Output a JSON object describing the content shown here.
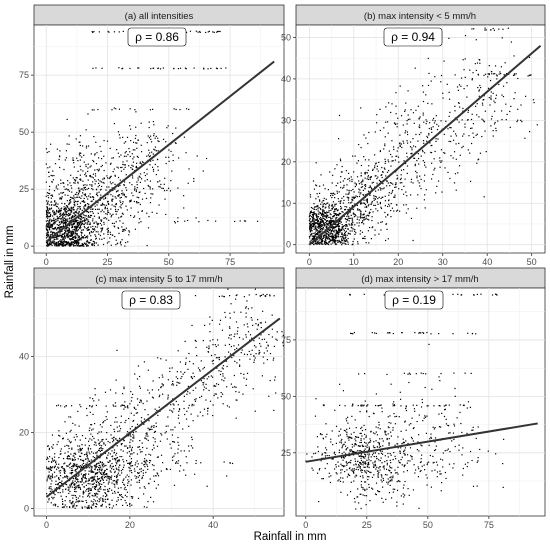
{
  "figure": {
    "xlabel": "Rainfall in mm",
    "ylabel": "Rainfall in mm"
  },
  "chart_data": [
    {
      "type": "scatter",
      "title": "(a) all intensities",
      "annotation": "ρ = 0.86",
      "xlim": [
        -5,
        97
      ],
      "ylim": [
        -3,
        97
      ],
      "xticks": [
        0,
        25,
        50,
        75
      ],
      "yticks": [
        0,
        25,
        50,
        75
      ],
      "grid": true,
      "fit_line": {
        "x": [
          0,
          93
        ],
        "y": [
          2,
          81
        ]
      },
      "clusters": [
        {
          "cx": 8,
          "cy": 8,
          "sx": 6,
          "sy": 7,
          "n": 900
        },
        {
          "cx": 20,
          "cy": 18,
          "sx": 9,
          "sy": 10,
          "n": 450
        },
        {
          "cx": 38,
          "cy": 35,
          "sx": 10,
          "sy": 10,
          "n": 250
        },
        {
          "cx": 10,
          "cy": 35,
          "sx": 6,
          "sy": 8,
          "n": 80
        }
      ],
      "bands": [
        {
          "y": 94,
          "x0": 18,
          "x1": 72,
          "n": 35
        },
        {
          "y": 78,
          "x0": 18,
          "x1": 75,
          "n": 30
        },
        {
          "y": 60,
          "x0": 15,
          "x1": 60,
          "n": 15
        },
        {
          "y": 11,
          "x0": 50,
          "x1": 94,
          "n": 12
        }
      ]
    },
    {
      "type": "scatter",
      "title": "(b) max intensity < 5 mm/h",
      "annotation": "ρ = 0.94",
      "xlim": [
        -3,
        53
      ],
      "ylim": [
        -2,
        53
      ],
      "xticks": [
        0,
        10,
        20,
        30,
        40,
        50
      ],
      "yticks": [
        0,
        10,
        20,
        30,
        40,
        50
      ],
      "grid": true,
      "fit_line": {
        "x": [
          0,
          52
        ],
        "y": [
          0,
          48
        ]
      },
      "clusters": [
        {
          "cx": 4,
          "cy": 4,
          "sx": 3,
          "sy": 3,
          "n": 800
        },
        {
          "cx": 12,
          "cy": 11,
          "sx": 5,
          "sy": 5,
          "n": 450
        },
        {
          "cx": 25,
          "cy": 24,
          "sx": 6,
          "sy": 6,
          "n": 260
        },
        {
          "cx": 38,
          "cy": 35,
          "sx": 6,
          "sy": 6,
          "n": 150
        }
      ],
      "bands": [
        {
          "y": 52,
          "x0": 34,
          "x1": 45,
          "n": 12
        },
        {
          "y": 41,
          "x0": 38,
          "x1": 50,
          "n": 25
        },
        {
          "y": 30,
          "x0": 25,
          "x1": 52,
          "n": 20
        }
      ]
    },
    {
      "type": "scatter",
      "title": "(c) max intensity 5 to 17 mm/h",
      "annotation": "ρ = 0.83",
      "xlim": [
        -3,
        57
      ],
      "ylim": [
        -2,
        58
      ],
      "xticks": [
        0,
        20,
        40
      ],
      "yticks": [
        0,
        20,
        40
      ],
      "grid": true,
      "fit_line": {
        "x": [
          0,
          56
        ],
        "y": [
          3,
          50
        ]
      },
      "clusters": [
        {
          "cx": 10,
          "cy": 9,
          "sx": 6,
          "sy": 5,
          "n": 900
        },
        {
          "cx": 22,
          "cy": 18,
          "sx": 7,
          "sy": 7,
          "n": 350
        },
        {
          "cx": 35,
          "cy": 32,
          "sx": 7,
          "sy": 6,
          "n": 200
        },
        {
          "cx": 48,
          "cy": 45,
          "sx": 5,
          "sy": 6,
          "n": 150
        }
      ],
      "bands": [
        {
          "y": 27,
          "x0": 2,
          "x1": 20,
          "n": 25
        },
        {
          "y": 56,
          "x0": 38,
          "x1": 55,
          "n": 20
        },
        {
          "y": 12,
          "x0": 30,
          "x1": 45,
          "n": 10
        }
      ]
    },
    {
      "type": "scatter",
      "title": "(d) max intensity > 17 mm/h",
      "annotation": "ρ = 0.19",
      "xlim": [
        -4,
        98
      ],
      "ylim": [
        -3,
        98
      ],
      "xticks": [
        0,
        25,
        50,
        75
      ],
      "yticks": [
        25,
        50,
        75
      ],
      "grid": true,
      "fit_line": {
        "x": [
          0,
          95
        ],
        "y": [
          21,
          38
        ]
      },
      "clusters": [
        {
          "cx": 22,
          "cy": 24,
          "sx": 9,
          "sy": 7,
          "n": 420
        },
        {
          "cx": 45,
          "cy": 30,
          "sx": 15,
          "sy": 12,
          "n": 260
        },
        {
          "cx": 30,
          "cy": 12,
          "sx": 8,
          "sy": 5,
          "n": 100
        }
      ],
      "bands": [
        {
          "y": 95,
          "x0": 18,
          "x1": 80,
          "n": 28
        },
        {
          "y": 78,
          "x0": 18,
          "x1": 70,
          "n": 28
        },
        {
          "y": 60,
          "x0": 15,
          "x1": 70,
          "n": 15
        },
        {
          "y": 46,
          "x0": 5,
          "x1": 65,
          "n": 40
        }
      ]
    }
  ]
}
